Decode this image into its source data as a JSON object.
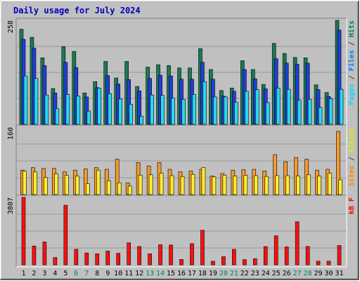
{
  "chart_data": {
    "type": "bar",
    "title": "Daily usage for July 2024",
    "categories": [
      "1",
      "2",
      "3",
      "4",
      "5",
      "6",
      "7",
      "8",
      "9",
      "10",
      "11",
      "12",
      "13",
      "14",
      "15",
      "16",
      "17",
      "18",
      "19",
      "20",
      "21",
      "22",
      "23",
      "24",
      "25",
      "26",
      "27",
      "28",
      "29",
      "30",
      "31"
    ],
    "weekend_days": [
      "6",
      "7",
      "13",
      "14",
      "20",
      "21",
      "27",
      "28"
    ],
    "panels": [
      {
        "id": "top",
        "ymax": 258,
        "ymax_label": "258",
        "legend": [
          {
            "text": "Pages",
            "color": "#00e0ff"
          },
          {
            "text": " / ",
            "color": "#404040"
          },
          {
            "text": "Files",
            "color": "#0080ff"
          },
          {
            "text": " / ",
            "color": "#404040"
          },
          {
            "text": "Hits",
            "color": "#008060"
          }
        ],
        "series": [
          {
            "key": "hits",
            "color": "#1a7a55",
            "values": [
              236,
              216,
              165,
              89,
              193,
              181,
              78,
              106,
              156,
              115,
              156,
              94,
              142,
              148,
              146,
              140,
              140,
              188,
              136,
              84,
              90,
              158,
              136,
              99,
              201,
              176,
              166,
              165,
              98,
              79,
              258
            ]
          },
          {
            "key": "files",
            "color": "#1f3fd6",
            "values": [
              211,
              189,
              146,
              78,
              154,
              141,
              68,
              91,
              121,
              100,
              111,
              83,
              114,
              122,
              120,
              112,
              112,
              154,
              112,
              70,
              82,
              136,
              113,
              88,
              163,
              152,
              149,
              152,
              86,
              69,
              234
            ]
          },
          {
            "key": "pages",
            "color": "#28d8f0",
            "values": [
              120,
              114,
              73,
              39,
              74,
              70,
              33,
              90,
              76,
              63,
              50,
              20,
              73,
              72,
              65,
              62,
              74,
              106,
              68,
              68,
              55,
              82,
              86,
              54,
              90,
              87,
              60,
              62,
              42,
              64,
              87
            ]
          }
        ]
      },
      {
        "id": "middle",
        "ymax": 160,
        "ymax_label": "160",
        "legend": [
          {
            "text": "Sites",
            "color": "#ff8800"
          },
          {
            "text": " / ",
            "color": "#404040"
          },
          {
            "text": "Visits",
            "color": "#e8e800"
          }
        ],
        "series": [
          {
            "key": "sites",
            "color": "#f59a2a",
            "values": [
              58,
              64,
              62,
              62,
              54,
              58,
              61,
              64,
              60,
              84,
              28,
              76,
              68,
              76,
              60,
              54,
              56,
              60,
              44,
              50,
              58,
              59,
              60,
              56,
              95,
              78,
              88,
              84,
              58,
              60,
              150
            ]
          },
          {
            "key": "visits",
            "color": "#ffee33",
            "values": [
              56,
              54,
              41,
              49,
              46,
              44,
              26,
              58,
              33,
              28,
              20,
              46,
              47,
              51,
              45,
              43,
              48,
              64,
              42,
              46,
              44,
              46,
              45,
              43,
              45,
              45,
              44,
              47,
              44,
              51,
              35
            ]
          }
        ]
      },
      {
        "id": "bottom",
        "ymax": 3807,
        "ymax_label": "3807",
        "legend": [
          {
            "text": "kB F",
            "color": "#ff0000"
          }
        ],
        "series": [
          {
            "key": "kbf",
            "color": "#ff1010",
            "values": [
              3807,
              1063,
              1293,
              415,
              3366,
              878,
              671,
              626,
              779,
              654,
              1246,
              1035,
              623,
              1133,
              1121,
              302,
              1198,
              1952,
              203,
              463,
              875,
              295,
              346,
              1032,
              1640,
              1015,
              2431,
              1039,
              209,
              209,
              1091
            ]
          }
        ]
      }
    ]
  }
}
